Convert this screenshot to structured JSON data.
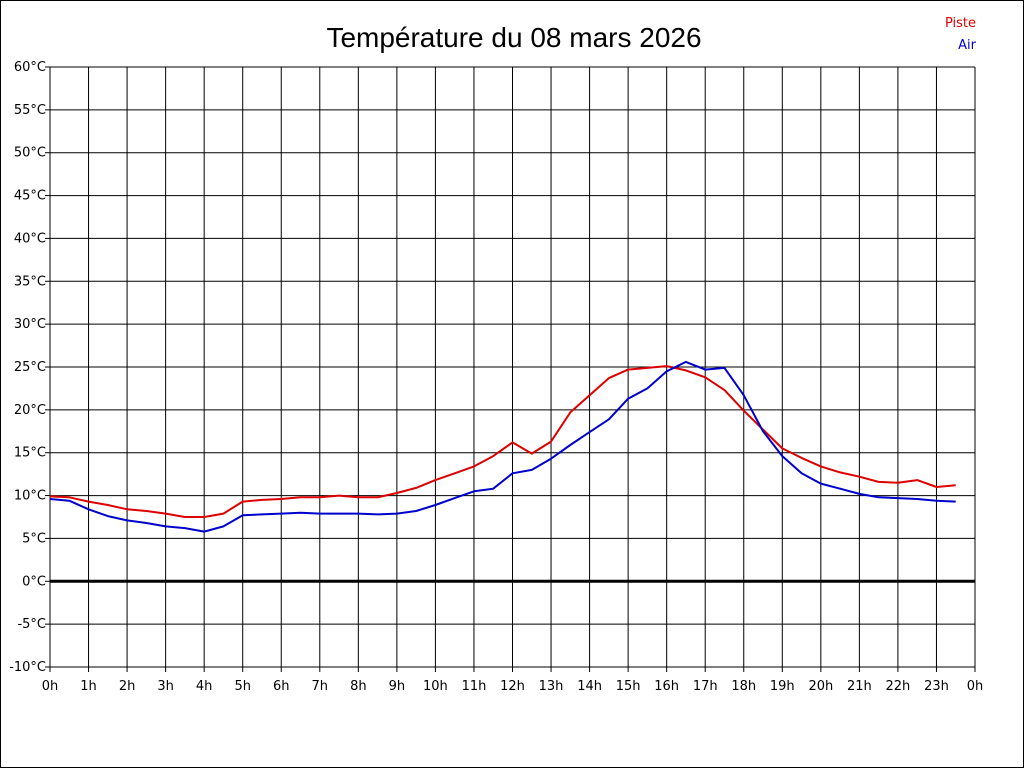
{
  "chart_data": {
    "type": "line",
    "title": "Température du 08 mars 2026",
    "xlabel": "",
    "ylabel": "",
    "x_ticks": [
      "0h",
      "1h",
      "2h",
      "3h",
      "4h",
      "5h",
      "6h",
      "7h",
      "8h",
      "9h",
      "10h",
      "11h",
      "12h",
      "13h",
      "14h",
      "15h",
      "16h",
      "17h",
      "18h",
      "19h",
      "20h",
      "21h",
      "22h",
      "23h",
      "0h"
    ],
    "xlim": [
      0,
      24
    ],
    "y_ticks": [
      "-10°C",
      "-5°C",
      "0°C",
      "5°C",
      "10°C",
      "15°C",
      "20°C",
      "25°C",
      "30°C",
      "35°C",
      "40°C",
      "45°C",
      "50°C",
      "55°C",
      "60°C"
    ],
    "ylim": [
      -10,
      60
    ],
    "grid": true,
    "zero_line": true,
    "legend": "top-right",
    "series": [
      {
        "name": "Piste",
        "color": "#dd0000",
        "x": [
          0,
          0.5,
          1,
          1.5,
          2,
          2.5,
          3,
          3.5,
          4,
          4.5,
          5,
          5.5,
          6,
          6.5,
          7,
          7.5,
          8,
          8.5,
          9,
          9.5,
          10,
          10.5,
          11,
          11.5,
          12,
          12.5,
          13,
          13.5,
          14,
          14.5,
          15,
          15.5,
          16,
          16.5,
          17,
          17.5,
          18,
          18.5,
          19,
          19.5,
          20,
          20.5,
          21,
          21.5,
          22,
          22.5,
          23,
          23.5
        ],
        "values": [
          9.9,
          9.8,
          9.3,
          8.9,
          8.4,
          8.2,
          7.9,
          7.5,
          7.5,
          7.9,
          9.3,
          9.5,
          9.6,
          9.8,
          9.8,
          10.0,
          9.8,
          9.8,
          10.3,
          10.9,
          11.8,
          12.6,
          13.4,
          14.6,
          16.2,
          14.9,
          16.3,
          19.7,
          21.7,
          23.7,
          24.7,
          24.9,
          25.1,
          24.6,
          23.8,
          22.3,
          19.9,
          17.7,
          15.5,
          14.4,
          13.4,
          12.7,
          12.2,
          11.6,
          11.5,
          11.8,
          11.0,
          11.2
        ]
      },
      {
        "name": "Air",
        "color": "#0000cc",
        "x": [
          0,
          0.5,
          1,
          1.5,
          2,
          2.5,
          3,
          3.5,
          4,
          4.5,
          5,
          5.5,
          6,
          6.5,
          7,
          7.5,
          8,
          8.5,
          9,
          9.5,
          10,
          10.5,
          11,
          11.5,
          12,
          12.5,
          13,
          13.5,
          14,
          14.5,
          15,
          15.5,
          16,
          16.5,
          17,
          17.5,
          18,
          18.5,
          19,
          19.5,
          20,
          20.5,
          21,
          21.5,
          22,
          22.5,
          23,
          23.5
        ],
        "values": [
          9.6,
          9.4,
          8.4,
          7.6,
          7.1,
          6.8,
          6.4,
          6.2,
          5.8,
          6.4,
          7.7,
          7.8,
          7.9,
          8.0,
          7.9,
          7.9,
          7.9,
          7.8,
          7.9,
          8.2,
          8.9,
          9.7,
          10.5,
          10.8,
          12.6,
          13.0,
          14.3,
          15.9,
          17.4,
          18.9,
          21.3,
          22.5,
          24.5,
          25.6,
          24.7,
          24.9,
          21.7,
          17.5,
          14.6,
          12.6,
          11.4,
          10.8,
          10.2,
          9.8,
          9.7,
          9.6,
          9.4,
          9.3
        ]
      }
    ]
  }
}
